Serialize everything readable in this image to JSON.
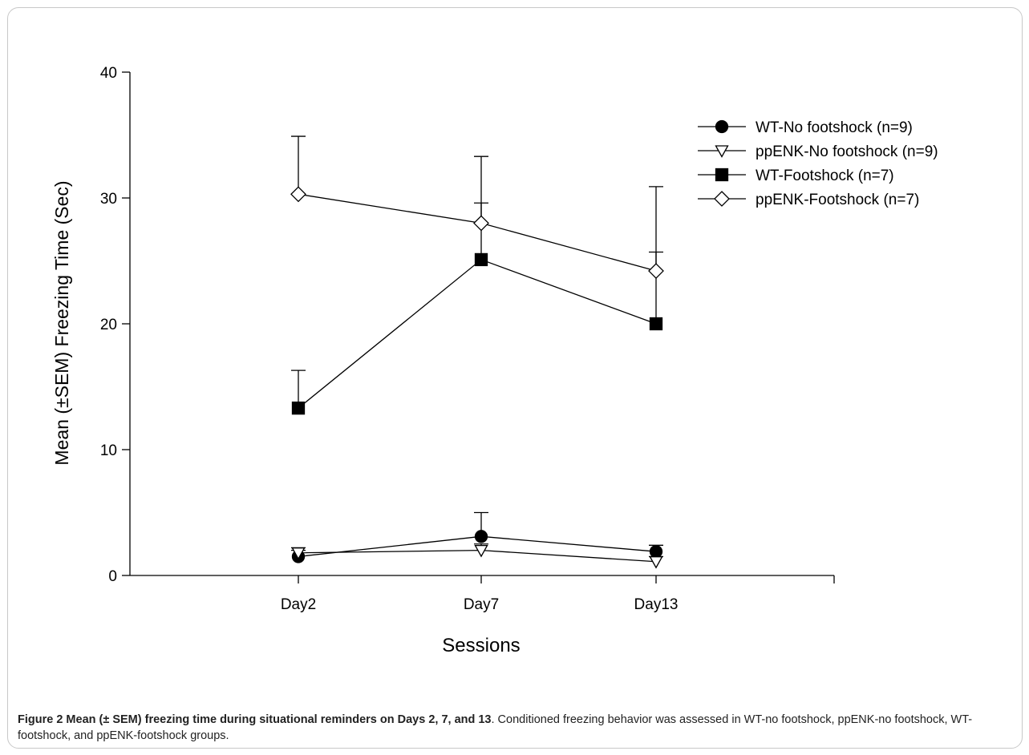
{
  "chart_data": {
    "type": "line",
    "xlabel": "Sessions",
    "ylabel": "Mean (±SEM) Freezing Time (Sec)",
    "categories": [
      "Day2",
      "Day7",
      "Day13"
    ],
    "ylim": [
      0,
      40
    ],
    "yticks": [
      0,
      10,
      20,
      30,
      40
    ],
    "grid": false,
    "legend_position": "top-right",
    "series": [
      {
        "name": "WT-No footshock (n=9)",
        "marker": "circle-filled",
        "values": [
          1.5,
          3.1,
          1.9
        ],
        "sem": [
          0.5,
          1.9,
          0.5
        ]
      },
      {
        "name": "ppENK-No footshock (n=9)",
        "marker": "triangle-down-open",
        "values": [
          1.8,
          2.0,
          1.1
        ],
        "sem": [
          0.4,
          0.5,
          0.4
        ]
      },
      {
        "name": "WT-Footshock (n=7)",
        "marker": "square-filled",
        "values": [
          13.3,
          25.1,
          20.0
        ],
        "sem": [
          3.0,
          8.2,
          5.7
        ]
      },
      {
        "name": "ppENK-Footshock (n=7)",
        "marker": "diamond-open",
        "values": [
          30.3,
          28.0,
          24.2
        ],
        "sem": [
          4.6,
          1.6,
          6.7
        ]
      }
    ]
  },
  "caption": {
    "title": "Figure 2 Mean (± SEM) freezing time during situational reminders on Days 2, 7, and 13",
    "text": ". Conditioned freezing behavior was assessed in WT-no footshock, ppENK-no footshock, WT-footshock, and ppENK-footshock groups."
  }
}
